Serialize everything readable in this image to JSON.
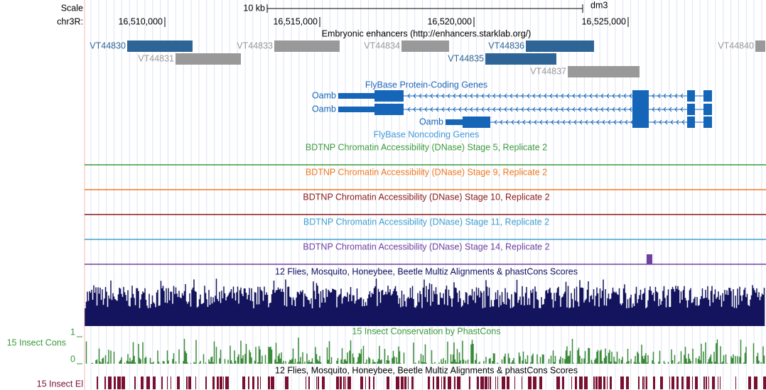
{
  "ruler": {
    "scale_label": "Scale",
    "chrom_label": "chr3R:",
    "span_label": "10 kb",
    "assembly": "dm3",
    "positions": [
      "16,510,000",
      "16,515,000",
      "16,520,000",
      "16,525,000"
    ]
  },
  "enhancers": {
    "title": "Embryonic enhancers (http://enhancers.starklab.org/)",
    "items": [
      {
        "name": "VT44830",
        "color": "#2e6596"
      },
      {
        "name": "VT44831",
        "color": "#999999"
      },
      {
        "name": "VT44833",
        "color": "#999999"
      },
      {
        "name": "VT44834",
        "color": "#999999"
      },
      {
        "name": "VT44836",
        "color": "#2e6596"
      },
      {
        "name": "VT44835",
        "color": "#2e6596"
      },
      {
        "name": "VT44837",
        "color": "#999999"
      },
      {
        "name": "VT44840",
        "color": "#999999"
      }
    ]
  },
  "genes": {
    "coding_title": "FlyBase Protein-Coding Genes",
    "transcripts": [
      "Oamb",
      "Oamb",
      "Oamb"
    ],
    "noncoding_title": "FlyBase Noncoding Genes"
  },
  "dnase_tracks": [
    {
      "title": "BDTNP Chromatin Accessibility (DNase) Stage 5, Replicate 2",
      "color": "#3a9a3a"
    },
    {
      "title": "BDTNP Chromatin Accessibility (DNase) Stage 9, Replicate 2",
      "color": "#f07820"
    },
    {
      "title": "BDTNP Chromatin Accessibility (DNase) Stage 10, Replicate 2",
      "color": "#8b1a1a"
    },
    {
      "title": "BDTNP Chromatin Accessibility (DNase) Stage 11, Replicate 2",
      "color": "#40a0d0"
    },
    {
      "title": "BDTNP Chromatin Accessibility (DNase) Stage 14, Replicate 2",
      "color": "#7040a0"
    }
  ],
  "conservation": {
    "multiz_title": "12 Flies, Mosquito, Honeybee, Beetle Multiz Alignments & phastCons Scores",
    "phastcons_title": "15 Insect Conservation by PhastCons",
    "phastcons_label": "15 Insect Cons",
    "axis_top": "1",
    "axis_bottom": "0",
    "elements_title": "12 Flies, Mosquito, Honeybee, Beetle Multiz Alignments & phastCons Scores",
    "elements_label": "15 Insect El"
  }
}
